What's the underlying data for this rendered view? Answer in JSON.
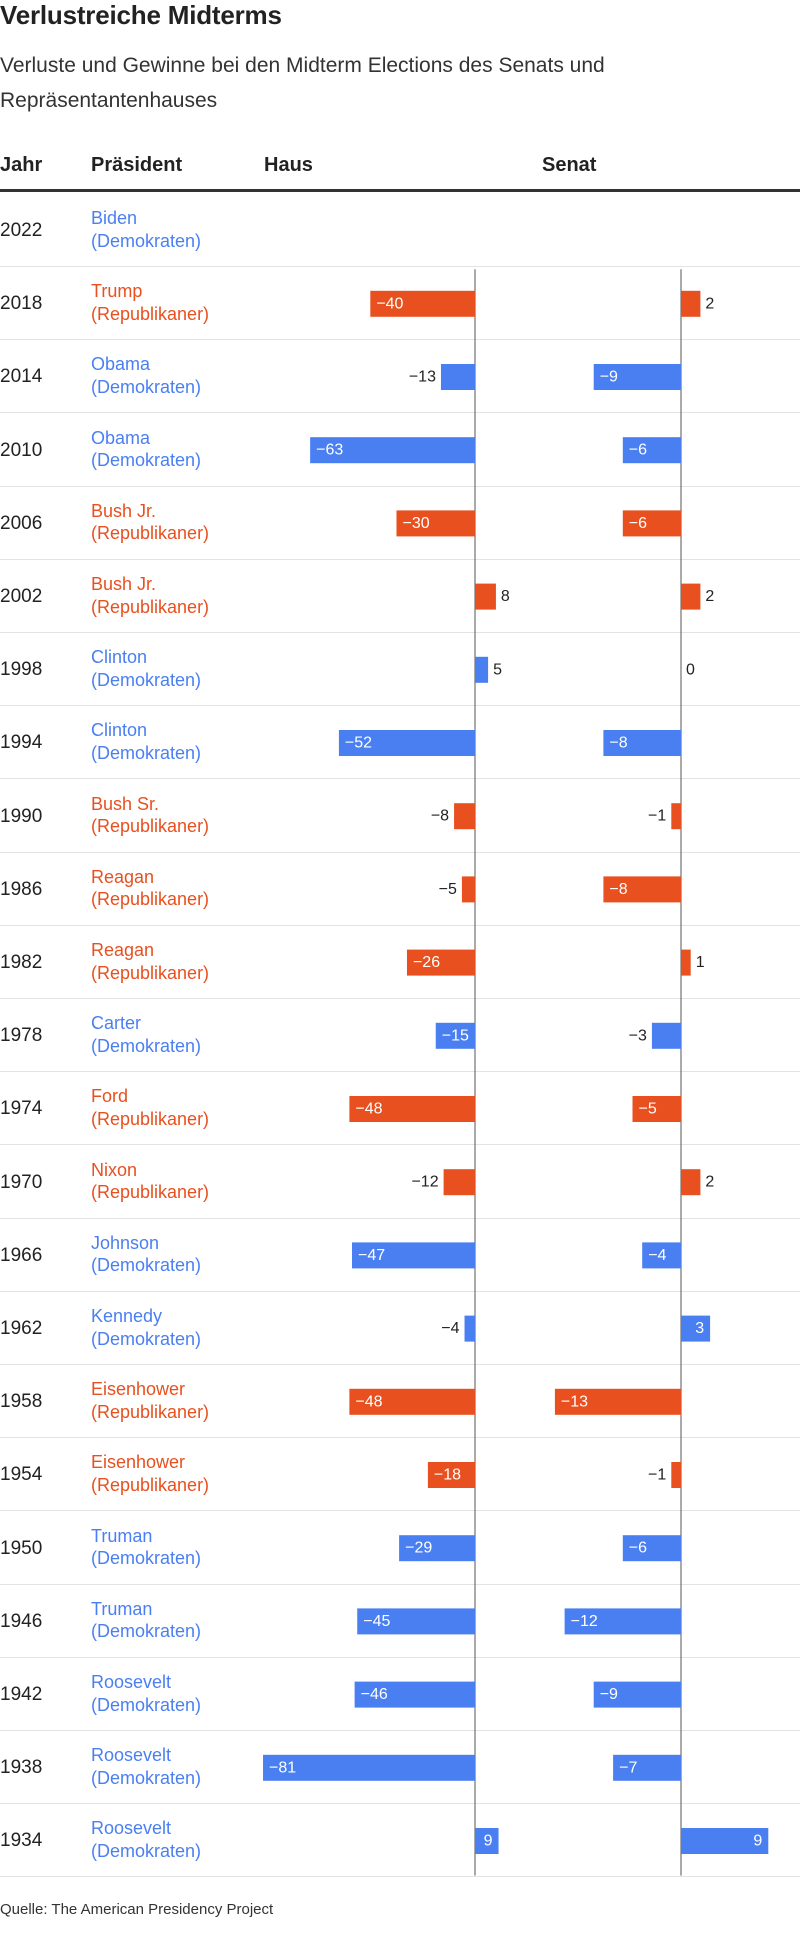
{
  "title": "Verlustreiche Midterms",
  "subtitle": "Verluste und Gewinne bei den Midterm Elections des Senats und Repräsentantenhauses",
  "headers": {
    "year": "Jahr",
    "president": "Präsident",
    "house": "Haus",
    "senate": "Senat"
  },
  "source": "Quelle: The American Presidency Project",
  "colors": {
    "democrats": "#4a7ff2",
    "republicans": "#e8501f",
    "axis": "#555555",
    "text": "#222222"
  },
  "chart_data": {
    "type": "bar",
    "title": "Verlustreiche Midterms",
    "xlabel": "",
    "ylabel": "",
    "series": [
      {
        "name": "Haus",
        "range": [
          -81,
          9
        ]
      },
      {
        "name": "Senat",
        "range": [
          -13,
          9
        ]
      }
    ],
    "rows": [
      {
        "year": "2022",
        "president": "Biden",
        "party": "(Demokraten)",
        "party_key": "D",
        "house": null,
        "senate": null
      },
      {
        "year": "2018",
        "president": "Trump",
        "party": "(Republikaner)",
        "party_key": "R",
        "house": -40,
        "senate": 2
      },
      {
        "year": "2014",
        "president": "Obama",
        "party": "(Demokraten)",
        "party_key": "D",
        "house": -13,
        "senate": -9
      },
      {
        "year": "2010",
        "president": "Obama",
        "party": "(Demokraten)",
        "party_key": "D",
        "house": -63,
        "senate": -6
      },
      {
        "year": "2006",
        "president": "Bush Jr.",
        "party": "(Republikaner)",
        "party_key": "R",
        "house": -30,
        "senate": -6
      },
      {
        "year": "2002",
        "president": "Bush Jr.",
        "party": "(Republikaner)",
        "party_key": "R",
        "house": 8,
        "senate": 2
      },
      {
        "year": "1998",
        "president": "Clinton",
        "party": "(Demokraten)",
        "party_key": "D",
        "house": 5,
        "senate": 0
      },
      {
        "year": "1994",
        "president": "Clinton",
        "party": "(Demokraten)",
        "party_key": "D",
        "house": -52,
        "senate": -8
      },
      {
        "year": "1990",
        "president": "Bush Sr.",
        "party": "(Republikaner)",
        "party_key": "R",
        "house": -8,
        "senate": -1
      },
      {
        "year": "1986",
        "president": "Reagan",
        "party": "(Republikaner)",
        "party_key": "R",
        "house": -5,
        "senate": -8
      },
      {
        "year": "1982",
        "president": "Reagan",
        "party": "(Republikaner)",
        "party_key": "R",
        "house": -26,
        "senate": 1
      },
      {
        "year": "1978",
        "president": "Carter",
        "party": "(Demokraten)",
        "party_key": "D",
        "house": -15,
        "senate": -3
      },
      {
        "year": "1974",
        "president": "Ford",
        "party": "(Republikaner)",
        "party_key": "R",
        "house": -48,
        "senate": -5
      },
      {
        "year": "1970",
        "president": "Nixon",
        "party": "(Republikaner)",
        "party_key": "R",
        "house": -12,
        "senate": 2
      },
      {
        "year": "1966",
        "president": "Johnson",
        "party": "(Demokraten)",
        "party_key": "D",
        "house": -47,
        "senate": -4
      },
      {
        "year": "1962",
        "president": "Kennedy",
        "party": "(Demokraten)",
        "party_key": "D",
        "house": -4,
        "senate": 3
      },
      {
        "year": "1958",
        "president": "Eisenhower",
        "party": "(Republikaner)",
        "party_key": "R",
        "house": -48,
        "senate": -13
      },
      {
        "year": "1954",
        "president": "Eisenhower",
        "party": "(Republikaner)",
        "party_key": "R",
        "house": -18,
        "senate": -1
      },
      {
        "year": "1950",
        "president": "Truman",
        "party": "(Demokraten)",
        "party_key": "D",
        "house": -29,
        "senate": -6
      },
      {
        "year": "1946",
        "president": "Truman",
        "party": "(Demokraten)",
        "party_key": "D",
        "house": -45,
        "senate": -12
      },
      {
        "year": "1942",
        "president": "Roosevelt",
        "party": "(Demokraten)",
        "party_key": "D",
        "house": -46,
        "senate": -9
      },
      {
        "year": "1938",
        "president": "Roosevelt",
        "party": "(Demokraten)",
        "party_key": "D",
        "house": -81,
        "senate": -7
      },
      {
        "year": "1934",
        "president": "Roosevelt",
        "party": "(Demokraten)",
        "party_key": "D",
        "house": 9,
        "senate": 9
      }
    ]
  }
}
